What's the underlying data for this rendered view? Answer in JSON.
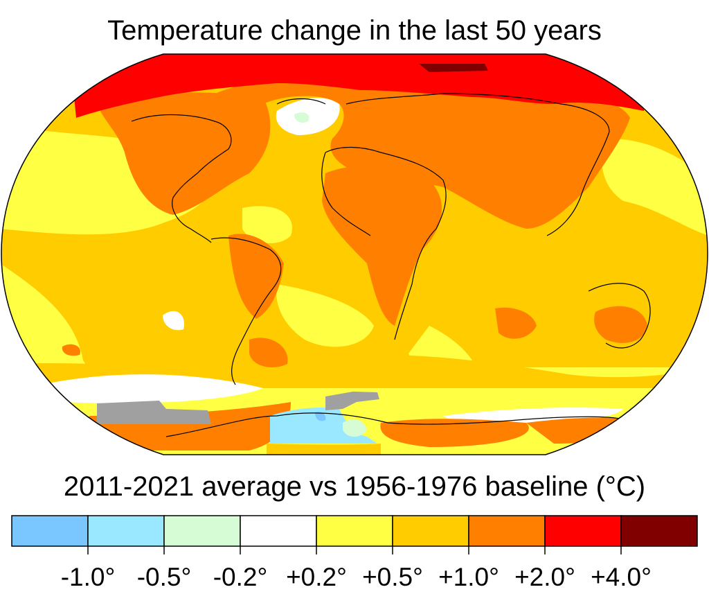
{
  "title": "Temperature change in the last 50 years",
  "subtitle": "2011-2021 average vs 1956-1976 baseline (°C)",
  "legend": {
    "bins": [
      {
        "color": "#7ac7ff"
      },
      {
        "color": "#9ae8ff"
      },
      {
        "color": "#d6fcd6"
      },
      {
        "color": "#ffffff"
      },
      {
        "color": "#ffff44"
      },
      {
        "color": "#ffcc00"
      },
      {
        "color": "#ff8000"
      },
      {
        "color": "#ff0000"
      },
      {
        "color": "#800000"
      }
    ],
    "tick_labels": [
      "-1.0°",
      "-0.5°",
      "-0.2°",
      "+0.2°",
      "+0.5°",
      "+1.0°",
      "+2.0°",
      "+4.0°"
    ]
  },
  "map": {
    "projection": "robinson-like ellipse",
    "no_data_color": "#a0a0a0"
  }
}
